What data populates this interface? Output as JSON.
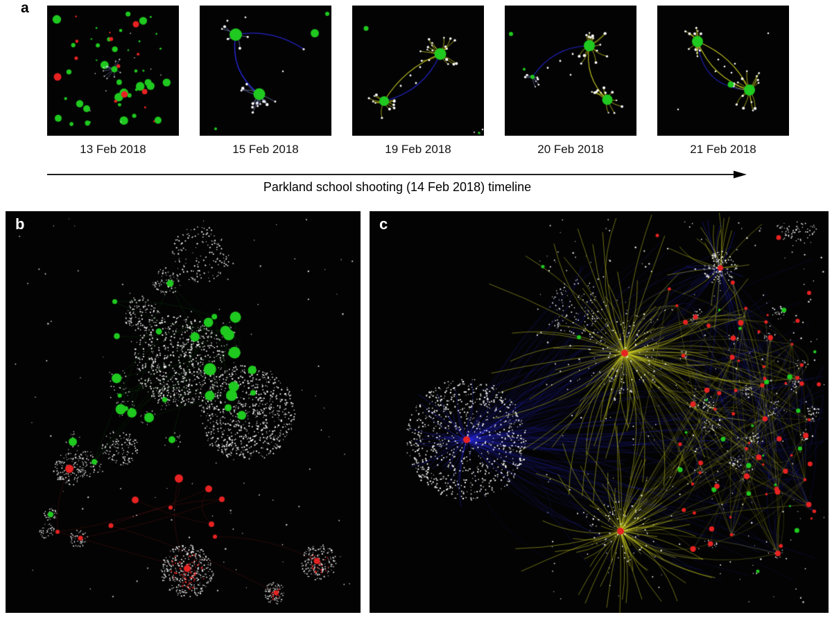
{
  "figure": {
    "panel_a": {
      "label": "a",
      "snapshots": [
        {
          "date": "13 Feb 2018"
        },
        {
          "date": "15 Feb 2018"
        },
        {
          "date": "19 Feb 2018"
        },
        {
          "date": "20 Feb 2018"
        },
        {
          "date": "21 Feb 2018"
        }
      ],
      "timeline_caption": "Parkland school shooting (14 Feb 2018) timeline"
    },
    "panel_b": {
      "label": "b"
    },
    "panel_c": {
      "label": "c"
    }
  },
  "visualization": {
    "background": "#030303",
    "colors": {
      "green_node": "#1fc91f",
      "red_node": "#e62222",
      "white_node": "#ffffff",
      "blue_edge": "#2525d4",
      "yellow_edge": "#ccce22",
      "green_edge": "#0c5c0c",
      "red_edge": "#8a1616",
      "grey_edge": "#7b86c4"
    }
  }
}
